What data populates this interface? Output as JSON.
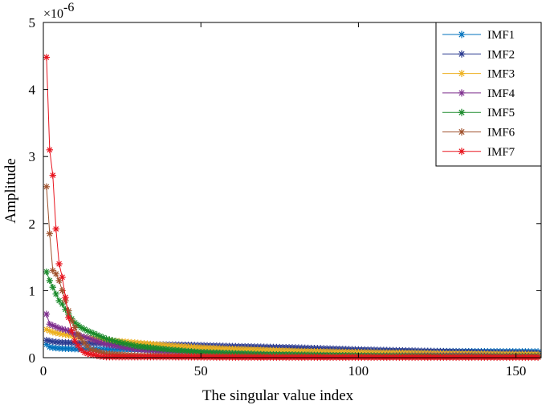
{
  "chart_data": {
    "type": "line",
    "title": "",
    "xlabel": "The singular value index",
    "ylabel": "Amplitude",
    "y_multiplier_label": "×10",
    "y_multiplier_exponent": "-6",
    "xlim": [
      0,
      158
    ],
    "ylim": [
      0,
      5
    ],
    "x_ticks": [
      0,
      50,
      100,
      150
    ],
    "y_ticks": [
      0,
      1,
      2,
      3,
      4,
      5
    ],
    "grid": false,
    "legend_position": "top-right",
    "marker": "asterisk",
    "series": [
      {
        "name": "IMF1",
        "color": "#0072BD",
        "x": [
          1,
          2,
          3,
          5,
          10,
          20,
          30,
          50,
          75,
          100,
          130,
          157
        ],
        "y": [
          0.2,
          0.16,
          0.15,
          0.14,
          0.13,
          0.125,
          0.12,
          0.115,
          0.11,
          0.1,
          0.095,
          0.09
        ]
      },
      {
        "name": "IMF2",
        "color": "#2B3A8F",
        "x": [
          1,
          2,
          3,
          5,
          10,
          20,
          30,
          45,
          60,
          80,
          100,
          120,
          140,
          157
        ],
        "y": [
          0.26,
          0.25,
          0.24,
          0.23,
          0.22,
          0.21,
          0.2,
          0.19,
          0.17,
          0.15,
          0.12,
          0.1,
          0.08,
          0.07
        ]
      },
      {
        "name": "IMF3",
        "color": "#EDB120",
        "x": [
          1,
          2,
          3,
          5,
          10,
          15,
          20,
          30,
          40,
          50,
          60,
          80,
          100,
          130,
          157
        ],
        "y": [
          0.42,
          0.4,
          0.38,
          0.36,
          0.32,
          0.29,
          0.26,
          0.22,
          0.18,
          0.15,
          0.13,
          0.1,
          0.08,
          0.06,
          0.05
        ]
      },
      {
        "name": "IMF4",
        "color": "#7E2F8E",
        "x": [
          1,
          2,
          3,
          5,
          8,
          10,
          15,
          20,
          30,
          40,
          60,
          80,
          100,
          130,
          157
        ],
        "y": [
          0.65,
          0.5,
          0.48,
          0.44,
          0.4,
          0.35,
          0.28,
          0.2,
          0.12,
          0.08,
          0.05,
          0.04,
          0.03,
          0.03,
          0.02
        ]
      },
      {
        "name": "IMF5",
        "color": "#1A8A2A",
        "x": [
          1,
          2,
          3,
          4,
          5,
          6,
          7,
          8,
          9,
          10,
          12,
          14,
          16,
          18,
          20,
          25,
          30,
          40,
          50,
          70,
          100,
          130,
          157
        ],
        "y": [
          1.28,
          1.15,
          1.05,
          0.95,
          0.85,
          0.8,
          0.72,
          0.65,
          0.58,
          0.52,
          0.45,
          0.4,
          0.36,
          0.32,
          0.28,
          0.22,
          0.17,
          0.12,
          0.08,
          0.05,
          0.03,
          0.02,
          0.02
        ]
      },
      {
        "name": "IMF6",
        "color": "#A0522D",
        "x": [
          1,
          2,
          3,
          4,
          5,
          6,
          7,
          8,
          9,
          10,
          11,
          12,
          13,
          14,
          15,
          20,
          30,
          50,
          80,
          120,
          157
        ],
        "y": [
          2.55,
          1.85,
          1.3,
          1.25,
          1.15,
          1.0,
          0.85,
          0.7,
          0.55,
          0.45,
          0.35,
          0.28,
          0.22,
          0.17,
          0.12,
          0.06,
          0.03,
          0.02,
          0.01,
          0.01,
          0.01
        ]
      },
      {
        "name": "IMF7",
        "color": "#E8141E",
        "x": [
          1,
          2,
          3,
          4,
          5,
          6,
          7,
          8,
          9,
          10,
          11,
          12,
          13,
          14,
          15,
          16,
          17,
          18,
          20,
          25,
          30,
          40,
          60,
          100,
          157
        ],
        "y": [
          4.48,
          3.1,
          2.72,
          1.92,
          1.4,
          1.2,
          0.9,
          0.6,
          0.4,
          0.25,
          0.18,
          0.12,
          0.08,
          0.06,
          0.05,
          0.04,
          0.03,
          0.02,
          0.01,
          0.01,
          0.01,
          0.01,
          0.005,
          0.005,
          0.005
        ]
      }
    ]
  }
}
